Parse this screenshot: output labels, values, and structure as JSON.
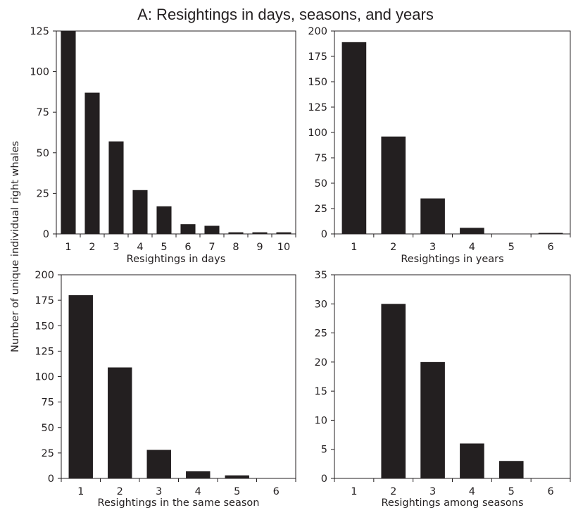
{
  "title": "A:  Resightings in days, seasons, and years",
  "shared_ylabel": "Number of unique individual right whales",
  "colors": {
    "bar": "#231f20",
    "axis": "#231f20",
    "background": "#ffffff"
  },
  "chart_data": [
    {
      "type": "bar",
      "id": "days",
      "xlabel": "Resightings in days",
      "categories": [
        "1",
        "2",
        "3",
        "4",
        "5",
        "6",
        "7",
        "8",
        "9",
        "10"
      ],
      "values": [
        125,
        87,
        57,
        27,
        17,
        6,
        5,
        1,
        1,
        1
      ],
      "ylim": [
        0,
        125
      ],
      "yticks": [
        0,
        25,
        50,
        75,
        100,
        125
      ],
      "grid": false
    },
    {
      "type": "bar",
      "id": "years",
      "xlabel": "Resightings in years",
      "categories": [
        "1",
        "2",
        "3",
        "4",
        "5",
        "6"
      ],
      "values": [
        189,
        96,
        35,
        6,
        0,
        1
      ],
      "ylim": [
        0,
        200
      ],
      "yticks": [
        0,
        25,
        50,
        75,
        100,
        125,
        150,
        175,
        200
      ],
      "grid": false
    },
    {
      "type": "bar",
      "id": "same-season",
      "xlabel": "Resightings in the same season",
      "categories": [
        "1",
        "2",
        "3",
        "4",
        "5",
        "6"
      ],
      "values": [
        180,
        109,
        28,
        7,
        3,
        0
      ],
      "ylim": [
        0,
        200
      ],
      "yticks": [
        0,
        25,
        50,
        75,
        100,
        125,
        150,
        175,
        200
      ],
      "grid": false
    },
    {
      "type": "bar",
      "id": "among-seasons",
      "xlabel": "Resightings among seasons",
      "categories": [
        "1",
        "2",
        "3",
        "4",
        "5",
        "6"
      ],
      "values": [
        0,
        30,
        20,
        6,
        3,
        0
      ],
      "ylim": [
        0,
        35
      ],
      "yticks": [
        0,
        5,
        10,
        15,
        20,
        25,
        30,
        35
      ],
      "grid": false
    }
  ]
}
